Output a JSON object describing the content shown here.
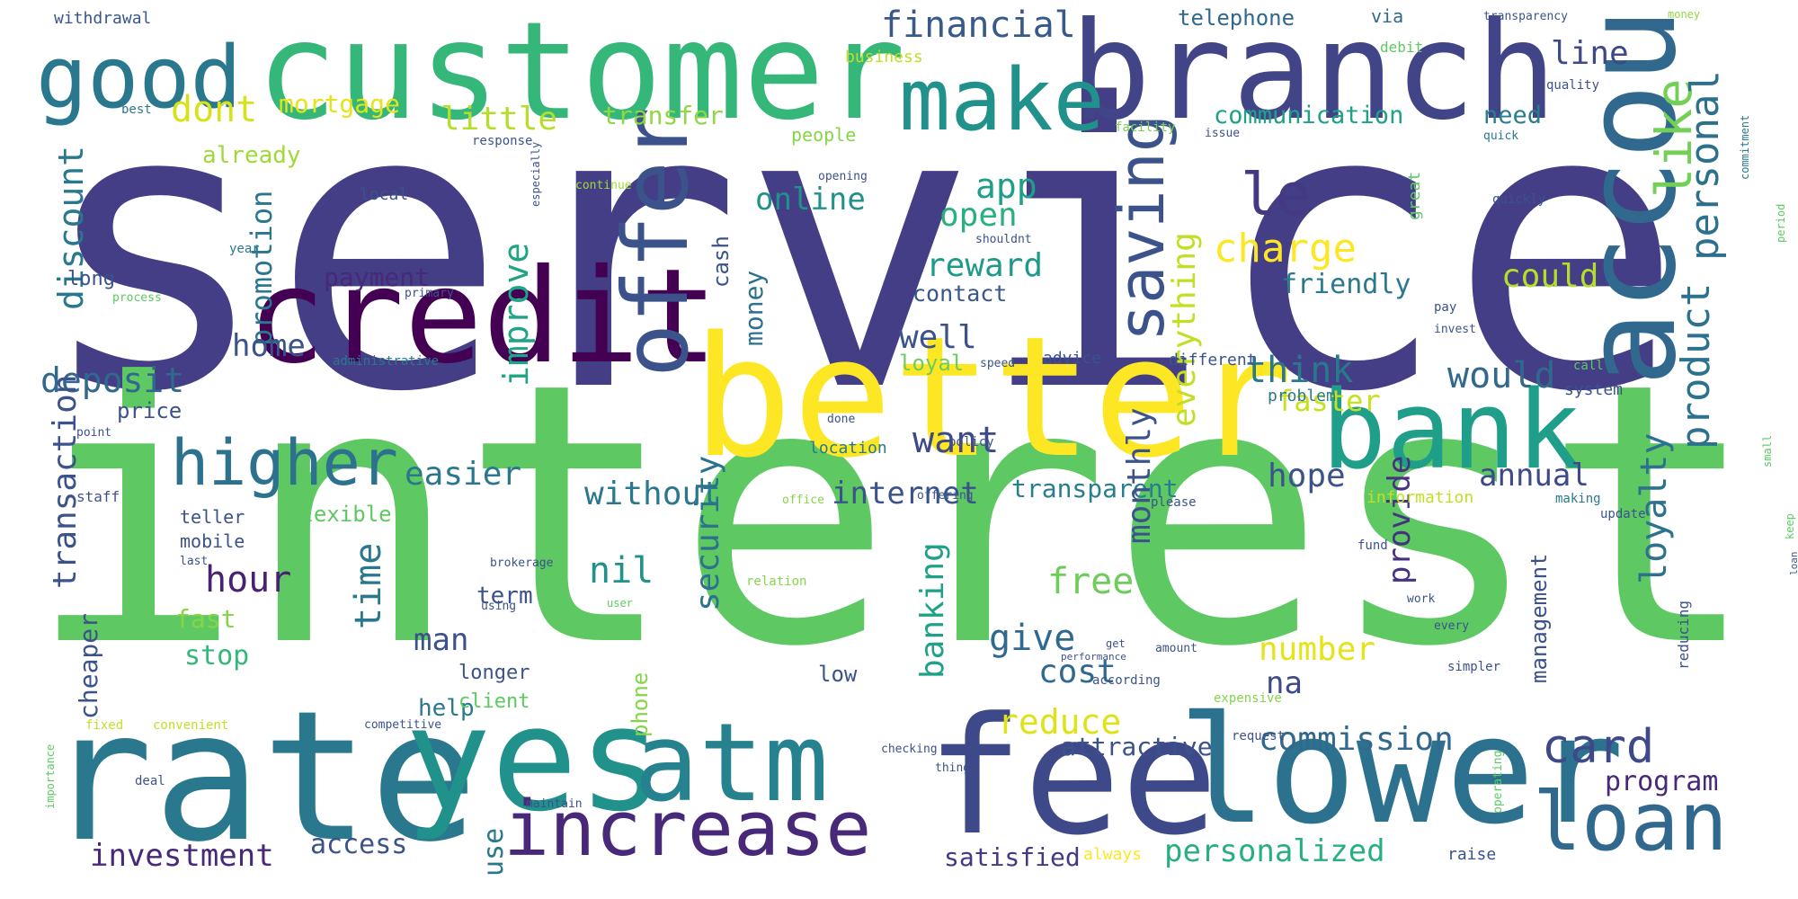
{
  "words": [
    {
      "id": "service",
      "text": "service",
      "color": "#433e85"
    },
    {
      "id": "interest",
      "text": "interest",
      "color": "#5ec962"
    },
    {
      "id": "customer",
      "text": "customer",
      "color": "#35b779"
    },
    {
      "id": "branch",
      "text": "branch",
      "color": "#414487"
    },
    {
      "id": "good",
      "text": "good",
      "color": "#2a788e"
    },
    {
      "id": "make",
      "text": "make",
      "color": "#21918c"
    },
    {
      "id": "account",
      "text": "account",
      "color": "#31688e"
    },
    {
      "id": "credit",
      "text": "credit",
      "color": "#440154"
    },
    {
      "id": "better",
      "text": "better",
      "color": "#fde725"
    },
    {
      "id": "offer",
      "text": "offer",
      "color": "#3b528b"
    },
    {
      "id": "bank",
      "text": "bank",
      "color": "#1f9e89"
    },
    {
      "id": "higher",
      "text": "higher",
      "color": "#2c728e"
    },
    {
      "id": "rate",
      "text": "rate",
      "color": "#2a788e"
    },
    {
      "id": "yes",
      "text": "yes",
      "color": "#21918c"
    },
    {
      "id": "atm",
      "text": "atm",
      "color": "#26828e"
    },
    {
      "id": "fee",
      "text": "fee",
      "color": "#3e4989"
    },
    {
      "id": "lower",
      "text": "lower",
      "color": "#2c728e"
    },
    {
      "id": "increase",
      "text": "increase",
      "color": "#482878"
    },
    {
      "id": "loan",
      "text": "loan",
      "color": "#31688e"
    },
    {
      "id": "saving",
      "text": "saving",
      "color": "#3b528b"
    },
    {
      "id": "le",
      "text": "le",
      "color": "#443983"
    },
    {
      "id": "financial",
      "text": "financial",
      "color": "#38598c"
    },
    {
      "id": "line",
      "text": "line",
      "color": "#3e4989"
    },
    {
      "id": "dont",
      "text": "dont",
      "color": "#d8e219"
    },
    {
      "id": "little",
      "text": "little",
      "color": "#b5de2b"
    },
    {
      "id": "mortgage",
      "text": "mortgage",
      "color": "#e5e419"
    },
    {
      "id": "transfer",
      "text": "transfer",
      "color": "#90d743"
    },
    {
      "id": "communication",
      "text": "communication",
      "color": "#1fa187"
    },
    {
      "id": "need",
      "text": "need",
      "color": "#287d8e"
    },
    {
      "id": "like",
      "text": "like",
      "color": "#73d056"
    },
    {
      "id": "personal",
      "text": "personal",
      "color": "#2d708e"
    },
    {
      "id": "product",
      "text": "product",
      "color": "#2c728e"
    },
    {
      "id": "app",
      "text": "app",
      "color": "#1f9e89"
    },
    {
      "id": "online",
      "text": "online",
      "color": "#21918c"
    },
    {
      "id": "open",
      "text": "open",
      "color": "#2ab07f"
    },
    {
      "id": "charge",
      "text": "charge",
      "color": "#fde725"
    },
    {
      "id": "could",
      "text": "could",
      "color": "#b5de2b"
    },
    {
      "id": "reward",
      "text": "reward",
      "color": "#1f9a8a"
    },
    {
      "id": "improve",
      "text": "improve",
      "color": "#20a486"
    },
    {
      "id": "promotion",
      "text": "promotion",
      "color": "#2a768e"
    },
    {
      "id": "discount",
      "text": "discount",
      "color": "#2a788e"
    },
    {
      "id": "everything",
      "text": "everything",
      "color": "#c2df23"
    },
    {
      "id": "friendly",
      "text": "friendly",
      "color": "#2a788e"
    },
    {
      "id": "contact",
      "text": "contact",
      "color": "#39568c"
    },
    {
      "id": "payment",
      "text": "payment",
      "color": "#482878"
    },
    {
      "id": "money",
      "text": "money",
      "color": "#2c728e"
    },
    {
      "id": "well",
      "text": "well",
      "color": "#3b528b"
    },
    {
      "id": "home",
      "text": "home",
      "color": "#3b528b"
    },
    {
      "id": "deposit",
      "text": "deposit",
      "color": "#31688e"
    },
    {
      "id": "think",
      "text": "think",
      "color": "#2a788e"
    },
    {
      "id": "would",
      "text": "would",
      "color": "#31688e"
    },
    {
      "id": "faster",
      "text": "faster",
      "color": "#c8e020"
    },
    {
      "id": "want",
      "text": "want",
      "color": "#3e4989"
    },
    {
      "id": "price",
      "text": "price",
      "color": "#3b528b"
    },
    {
      "id": "loyal",
      "text": "loyal",
      "color": "#6ccd5a"
    },
    {
      "id": "easier",
      "text": "easier",
      "color": "#2a788e"
    },
    {
      "id": "hope",
      "text": "hope",
      "color": "#3b528b"
    },
    {
      "id": "without",
      "text": "without",
      "color": "#2a788e"
    },
    {
      "id": "internet",
      "text": "internet",
      "color": "#3b528b"
    },
    {
      "id": "transparent",
      "text": "transparent",
      "color": "#287d8e"
    },
    {
      "id": "annual",
      "text": "annual",
      "color": "#3e4989"
    },
    {
      "id": "transaction",
      "text": "transaction",
      "color": "#3b528b"
    },
    {
      "id": "hour",
      "text": "hour",
      "color": "#482173"
    },
    {
      "id": "nil",
      "text": "nil",
      "color": "#21918c"
    },
    {
      "id": "security",
      "text": "security",
      "color": "#2c728e"
    },
    {
      "id": "monthly",
      "text": "monthly",
      "color": "#3b528b"
    },
    {
      "id": "loyalty",
      "text": "loyalty",
      "color": "#2c728e"
    },
    {
      "id": "provide",
      "text": "provide",
      "color": "#46327e"
    },
    {
      "id": "free",
      "text": "free",
      "color": "#6ccd5a"
    },
    {
      "id": "give",
      "text": "give",
      "color": "#31688e"
    },
    {
      "id": "time",
      "text": "time",
      "color": "#2a788e"
    },
    {
      "id": "banking",
      "text": "banking",
      "color": "#1fa187"
    },
    {
      "id": "man",
      "text": "man",
      "color": "#3b528b"
    },
    {
      "id": "number",
      "text": "number",
      "color": "#e5e419"
    },
    {
      "id": "cost",
      "text": "cost",
      "color": "#31688e"
    },
    {
      "id": "na",
      "text": "na",
      "color": "#3e4989"
    },
    {
      "id": "reduce",
      "text": "reduce",
      "color": "#dde318"
    },
    {
      "id": "card",
      "text": "card",
      "color": "#3e4989"
    },
    {
      "id": "program",
      "text": "program",
      "color": "#482878"
    },
    {
      "id": "commission",
      "text": "commission",
      "color": "#31688e"
    },
    {
      "id": "cheaper",
      "text": "cheaper",
      "color": "#3b528b"
    },
    {
      "id": "fast",
      "text": "fast",
      "color": "#86d549"
    },
    {
      "id": "stop",
      "text": "stop",
      "color": "#35b779"
    },
    {
      "id": "term",
      "text": "term",
      "color": "#3b528b"
    },
    {
      "id": "help",
      "text": "help",
      "color": "#2a788e"
    },
    {
      "id": "longer",
      "text": "longer",
      "color": "#3b528b"
    },
    {
      "id": "client",
      "text": "client",
      "color": "#5ec962"
    },
    {
      "id": "low",
      "text": "low",
      "color": "#3b528b"
    },
    {
      "id": "phone",
      "text": "phone",
      "color": "#86d549"
    },
    {
      "id": "use",
      "text": "use",
      "color": "#2a788e"
    },
    {
      "id": "investment",
      "text": "investment",
      "color": "#482878"
    },
    {
      "id": "access",
      "text": "access",
      "color": "#3b528b"
    },
    {
      "id": "satisfied",
      "text": "satisfied",
      "color": "#443983"
    },
    {
      "id": "personalized",
      "text": "personalized",
      "color": "#29af7f"
    },
    {
      "id": "management",
      "text": "management",
      "color": "#3b528b"
    },
    {
      "id": "telephone",
      "text": "telephone",
      "color": "#31688e"
    },
    {
      "id": "via",
      "text": "via",
      "color": "#31688e"
    },
    {
      "id": "withdrawal",
      "text": "withdrawal",
      "color": "#39568c"
    },
    {
      "id": "transparency",
      "text": "transparency",
      "color": "#39568c"
    },
    {
      "id": "money_small",
      "text": "money",
      "color": "#90d743"
    },
    {
      "id": "business",
      "text": "business",
      "color": "#c2df23"
    },
    {
      "id": "debit",
      "text": "debit",
      "color": "#5ec962"
    },
    {
      "id": "quality",
      "text": "quality",
      "color": "#3b528b"
    },
    {
      "id": "best",
      "text": "best",
      "color": "#2a788e"
    },
    {
      "id": "people",
      "text": "people",
      "color": "#86d549"
    },
    {
      "id": "response",
      "text": "response",
      "color": "#39568c"
    },
    {
      "id": "facility",
      "text": "facility",
      "color": "#7ad151"
    },
    {
      "id": "issue",
      "text": "issue",
      "color": "#3b528b"
    },
    {
      "id": "quick",
      "text": "quick",
      "color": "#2a788e"
    },
    {
      "id": "already",
      "text": "already",
      "color": "#a0da39"
    },
    {
      "id": "local",
      "text": "local",
      "color": "#3b528b"
    },
    {
      "id": "especially",
      "text": "especially",
      "color": "#3b528b"
    },
    {
      "id": "continue",
      "text": "continue",
      "color": "#a0da39"
    },
    {
      "id": "opening",
      "text": "opening",
      "color": "#3b528b"
    },
    {
      "id": "great",
      "text": "great",
      "color": "#5ec962"
    },
    {
      "id": "quickly",
      "text": "quickly",
      "color": "#3b528b"
    },
    {
      "id": "long",
      "text": "long",
      "color": "#3b528b"
    },
    {
      "id": "year",
      "text": "year",
      "color": "#2a788e"
    },
    {
      "id": "process",
      "text": "process",
      "color": "#5ec962"
    },
    {
      "id": "primary",
      "text": "primary",
      "color": "#3b528b"
    },
    {
      "id": "cash",
      "text": "cash",
      "color": "#3b528b"
    },
    {
      "id": "shouldnt",
      "text": "shouldnt",
      "color": "#3b528b"
    },
    {
      "id": "pay",
      "text": "pay",
      "color": "#3b528b"
    },
    {
      "id": "invest",
      "text": "invest",
      "color": "#3b528b"
    },
    {
      "id": "advice",
      "text": "advice",
      "color": "#3b528b"
    },
    {
      "id": "different",
      "text": "different",
      "color": "#3b528b"
    },
    {
      "id": "administrative",
      "text": "administrative",
      "color": "#2a788e"
    },
    {
      "id": "speed",
      "text": "speed",
      "color": "#3b528b"
    },
    {
      "id": "call",
      "text": "call",
      "color": "#5ec962"
    },
    {
      "id": "problem",
      "text": "problem",
      "color": "#2a788e"
    },
    {
      "id": "system",
      "text": "system",
      "color": "#3b528b"
    },
    {
      "id": "point",
      "text": "point",
      "color": "#3b528b"
    },
    {
      "id": "location",
      "text": "location",
      "color": "#2a788e"
    },
    {
      "id": "done",
      "text": "done",
      "color": "#3b528b"
    },
    {
      "id": "policy",
      "text": "policy",
      "color": "#3b528b"
    },
    {
      "id": "staff",
      "text": "staff",
      "color": "#3b528b"
    },
    {
      "id": "office",
      "text": "office",
      "color": "#86d549"
    },
    {
      "id": "offering",
      "text": "offering",
      "color": "#3b528b"
    },
    {
      "id": "information",
      "text": "information",
      "color": "#c2df23"
    },
    {
      "id": "making",
      "text": "making",
      "color": "#2a788e"
    },
    {
      "id": "teller",
      "text": "teller",
      "color": "#3b528b"
    },
    {
      "id": "mobile",
      "text": "mobile",
      "color": "#3b528b"
    },
    {
      "id": "flexible",
      "text": "flexible",
      "color": "#5ec962"
    },
    {
      "id": "please",
      "text": "please",
      "color": "#3b528b"
    },
    {
      "id": "update",
      "text": "update",
      "color": "#3b528b"
    },
    {
      "id": "fund",
      "text": "fund",
      "color": "#3b528b"
    },
    {
      "id": "brokerage",
      "text": "brokerage",
      "color": "#3b528b"
    },
    {
      "id": "relation",
      "text": "relation",
      "color": "#86d549"
    },
    {
      "id": "work",
      "text": "work",
      "color": "#3b528b"
    },
    {
      "id": "every",
      "text": "every",
      "color": "#3b528b"
    },
    {
      "id": "reducing",
      "text": "reducing",
      "color": "#3b528b"
    },
    {
      "id": "convenient",
      "text": "convenient",
      "color": "#c2df23"
    },
    {
      "id": "competitive",
      "text": "competitive",
      "color": "#3b528b"
    },
    {
      "id": "according",
      "text": "according",
      "color": "#3b528b"
    },
    {
      "id": "simpler",
      "text": "simpler",
      "color": "#3b528b"
    },
    {
      "id": "expensive",
      "text": "expensive",
      "color": "#86d549"
    },
    {
      "id": "attractive",
      "text": "attractive",
      "color": "#3b528b"
    },
    {
      "id": "request",
      "text": "request",
      "color": "#3b528b"
    },
    {
      "id": "checking",
      "text": "checking",
      "color": "#3b528b"
    },
    {
      "id": "deal",
      "text": "deal",
      "color": "#3b528b"
    },
    {
      "id": "maintain",
      "text": "maintain",
      "color": "#3b528b"
    },
    {
      "id": "thing",
      "text": "thing",
      "color": "#3b528b"
    },
    {
      "id": "raise",
      "text": "raise",
      "color": "#3b528b"
    },
    {
      "id": "always",
      "text": "always",
      "color": "#fde725"
    },
    {
      "id": "operating",
      "text": "operating",
      "color": "#5ec962"
    },
    {
      "id": "importance",
      "text": "importance",
      "color": "#5ec962"
    },
    {
      "id": "fixed",
      "text": "fixed",
      "color": "#c2df23"
    },
    {
      "id": "amount",
      "text": "amount",
      "color": "#3b528b"
    },
    {
      "id": "performance",
      "text": "performance",
      "color": "#3b528b"
    },
    {
      "id": "using",
      "text": "using",
      "color": "#3b528b"
    },
    {
      "id": "last",
      "text": "last",
      "color": "#3b528b"
    },
    {
      "id": "get",
      "text": "get",
      "color": "#3b528b"
    },
    {
      "id": "loan_small",
      "text": "loan",
      "color": "#3b528b"
    },
    {
      "id": "user",
      "text": "user",
      "color": "#5ec962"
    },
    {
      "id": "keep",
      "text": "keep",
      "color": "#5ec962"
    },
    {
      "id": "small",
      "text": "small",
      "color": "#5ec962"
    },
    {
      "id": "period",
      "text": "period",
      "color": "#5ec962"
    },
    {
      "id": "commitment",
      "text": "commitment",
      "color": "#2a788e"
    }
  ]
}
